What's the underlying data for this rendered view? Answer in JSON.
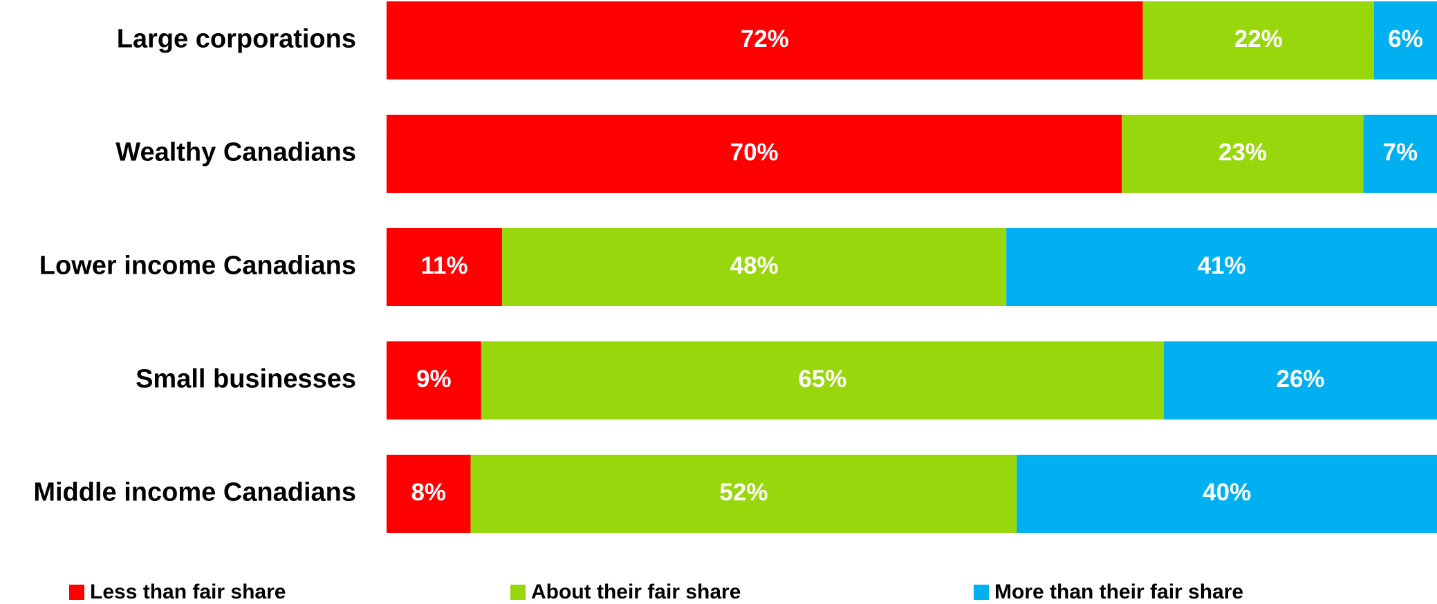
{
  "chart_data": {
    "type": "bar",
    "orientation": "horizontal",
    "stacked": true,
    "categories": [
      "Large corporations",
      "Wealthy Canadians",
      "Lower income Canadians",
      "Small businesses",
      "Middle income Canadians"
    ],
    "series": [
      {
        "name": "Less than fair share",
        "color": "#ff0000",
        "values": [
          72,
          70,
          11,
          9,
          8
        ],
        "labels": [
          "72%",
          "70%",
          "11%",
          "9%",
          "8%"
        ]
      },
      {
        "name": "About their fair share",
        "color": "#97d70b",
        "values": [
          22,
          23,
          48,
          65,
          52
        ],
        "labels": [
          "22%",
          "23%",
          "48%",
          "65%",
          "52%"
        ]
      },
      {
        "name": "More than their fair share",
        "color": "#00b0f0",
        "values": [
          6,
          7,
          41,
          26,
          40
        ],
        "labels": [
          "6%",
          "7%",
          "41%",
          "26%",
          "40%"
        ]
      }
    ],
    "xlim": [
      0,
      100
    ],
    "legend_position": "bottom",
    "grid": false
  }
}
